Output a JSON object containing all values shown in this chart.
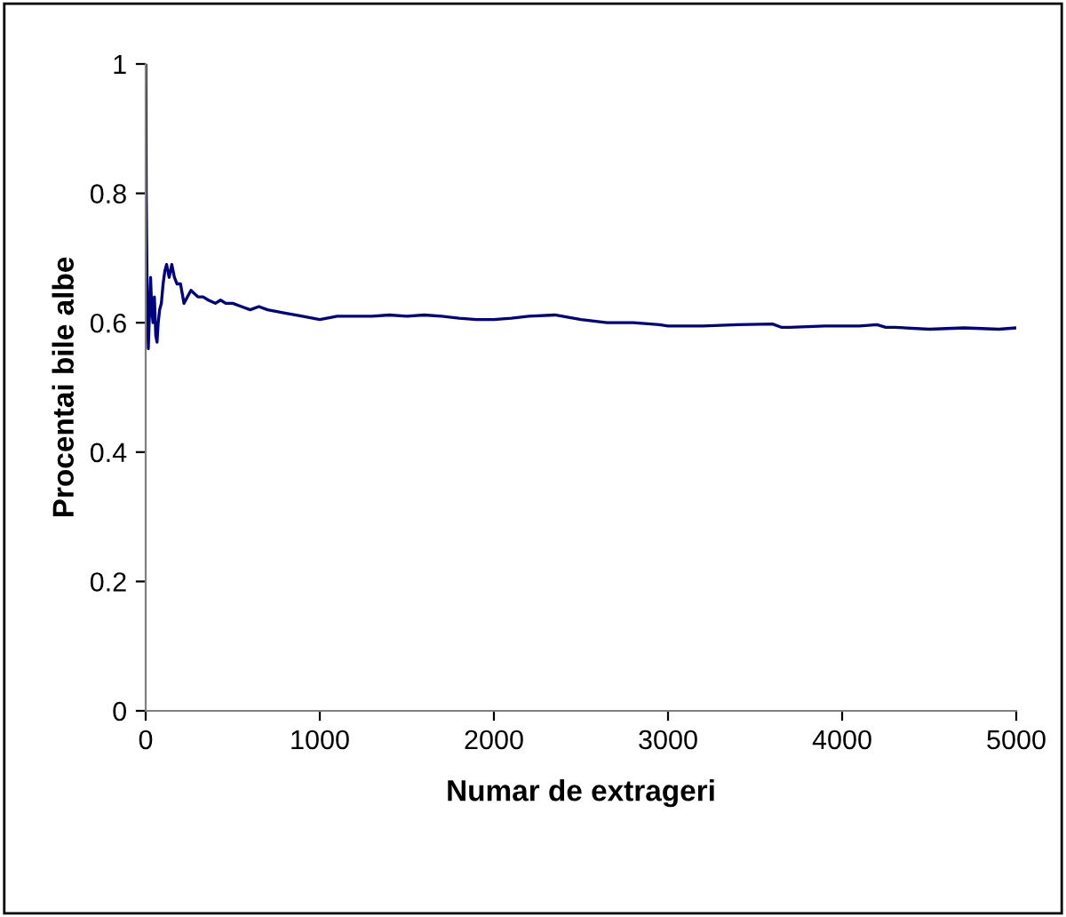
{
  "chart_data": {
    "type": "line",
    "xlabel": "Numar de extrageri",
    "ylabel": "Procentai bile albe",
    "series": [
      {
        "color": "#000080",
        "x": [
          1,
          3,
          8,
          15,
          20,
          28,
          35,
          42,
          50,
          58,
          65,
          72,
          80,
          90,
          100,
          110,
          120,
          135,
          150,
          165,
          180,
          200,
          220,
          240,
          260,
          280,
          300,
          330,
          360,
          400,
          430,
          460,
          500,
          550,
          600,
          650,
          700,
          800,
          900,
          1000,
          1100,
          1200,
          1300,
          1400,
          1500,
          1600,
          1700,
          1800,
          1900,
          2000,
          2100,
          2200,
          2350,
          2500,
          2650,
          2800,
          2950,
          3000,
          3200,
          3400,
          3600,
          3650,
          3700,
          3900,
          4100,
          4200,
          4250,
          4300,
          4500,
          4700,
          4900,
          5000
        ],
        "values": [
          1,
          0.8,
          0.65,
          0.56,
          0.6,
          0.67,
          0.62,
          0.6,
          0.64,
          0.58,
          0.57,
          0.6,
          0.62,
          0.63,
          0.66,
          0.68,
          0.69,
          0.67,
          0.69,
          0.67,
          0.66,
          0.66,
          0.63,
          0.64,
          0.65,
          0.645,
          0.64,
          0.64,
          0.635,
          0.63,
          0.635,
          0.63,
          0.63,
          0.625,
          0.62,
          0.625,
          0.62,
          0.615,
          0.61,
          0.605,
          0.61,
          0.61,
          0.61,
          0.612,
          0.61,
          0.612,
          0.61,
          0.607,
          0.605,
          0.605,
          0.607,
          0.61,
          0.612,
          0.605,
          0.6,
          0.6,
          0.597,
          0.595,
          0.595,
          0.597,
          0.598,
          0.593,
          0.593,
          0.595,
          0.595,
          0.597,
          0.593,
          0.593,
          0.59,
          0.592,
          0.59,
          0.592
        ]
      }
    ],
    "xlim": [
      0,
      5000
    ],
    "xticks": [
      0,
      1000,
      2000,
      3000,
      4000,
      5000
    ],
    "ylim": [
      0,
      1
    ],
    "yticks": [
      0,
      0.2,
      0.4,
      0.6,
      0.8,
      1
    ],
    "grid": false,
    "legend": false,
    "marker": "none",
    "line_style": "solid"
  }
}
